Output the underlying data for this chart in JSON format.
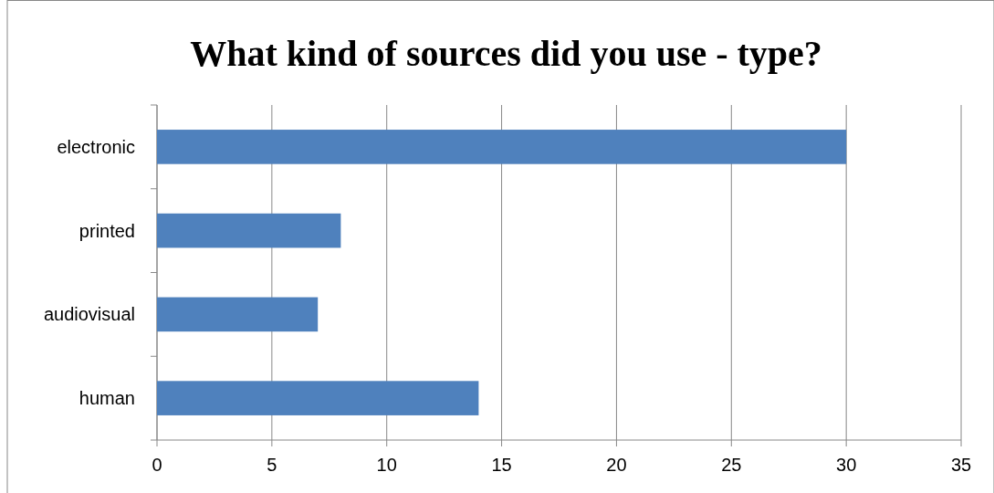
{
  "chart_data": {
    "type": "bar",
    "title": "What kind of sources did you use - type?",
    "orientation": "horizontal",
    "categories": [
      "electronic",
      "printed",
      "audiovisual",
      "human"
    ],
    "values": [
      30,
      8,
      7,
      14
    ],
    "color": "#4f81bd",
    "xlim": [
      0,
      35
    ],
    "xticks": [
      0,
      5,
      10,
      15,
      20,
      25,
      30,
      35
    ],
    "grid": "x"
  }
}
